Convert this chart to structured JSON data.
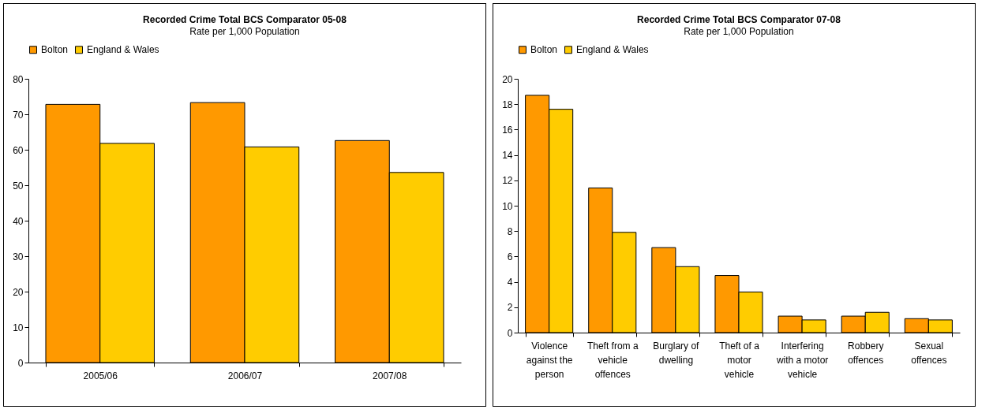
{
  "chart_data": [
    {
      "type": "bar",
      "title": "Recorded Crime Total BCS Comparator 05-08",
      "subtitle": "Rate per 1,000 Population",
      "categories": [
        "2005/06",
        "2006/07",
        "2007/08"
      ],
      "series": [
        {
          "name": "Bolton",
          "color": "#ff9900",
          "values": [
            72.8,
            73.3,
            62.6
          ]
        },
        {
          "name": "England & Wales",
          "color": "#ffcc00",
          "values": [
            61.8,
            60.8,
            53.6
          ]
        }
      ],
      "ylim": [
        0,
        80
      ],
      "yticks": [
        0,
        10,
        20,
        30,
        40,
        50,
        60,
        70,
        80
      ],
      "grid": false,
      "legend": "top"
    },
    {
      "type": "bar",
      "title": "Recorded Crime Total BCS Comparator 07-08",
      "subtitle": "Rate per 1,000 Population",
      "categories": [
        "Violence against the person",
        "Theft from a vehicle offences",
        "Burglary of dwelling",
        "Theft of a motor vehicle",
        "Interfering with a motor vehicle",
        "Robbery offences",
        "Sexual offences"
      ],
      "series": [
        {
          "name": "Bolton",
          "color": "#ff9900",
          "values": [
            18.7,
            11.4,
            6.7,
            4.5,
            1.3,
            1.3,
            1.1
          ]
        },
        {
          "name": "England & Wales",
          "color": "#ffcc00",
          "values": [
            17.6,
            7.9,
            5.2,
            3.2,
            1.0,
            1.6,
            1.0
          ]
        }
      ],
      "ylim": [
        0,
        20
      ],
      "yticks": [
        0,
        2,
        4,
        6,
        8,
        10,
        12,
        14,
        16,
        18,
        20
      ],
      "grid": false,
      "legend": "top"
    }
  ]
}
